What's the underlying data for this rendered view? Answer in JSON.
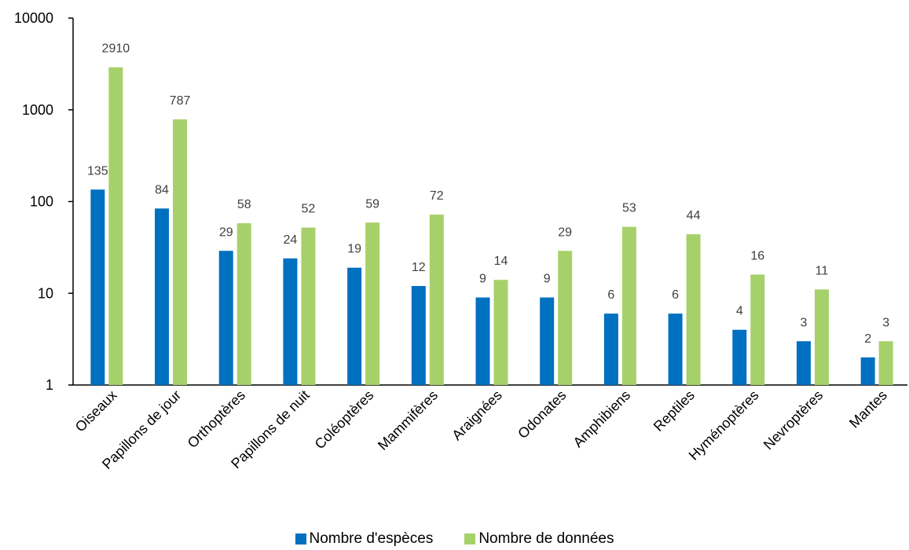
{
  "chart_data": {
    "type": "bar",
    "yscale": "log",
    "ylim": [
      1,
      10000
    ],
    "yticks": [
      "1",
      "10",
      "100",
      "1000",
      "10000"
    ],
    "grid": false,
    "legend_position": "bottom",
    "categories": [
      "Oiseaux",
      "Papillons de jour",
      "Orthoptères",
      "Papillons de nuit",
      "Coléoptères",
      "Mammifères",
      "Araignées",
      "Odonates",
      "Amphibiens",
      "Reptiles",
      "Hyménoptères",
      "Nevroptères",
      "Mantes"
    ],
    "series": [
      {
        "name": "Nombre d'espèces",
        "color": "#0070C0",
        "values": [
          135,
          84,
          29,
          24,
          19,
          12,
          9,
          9,
          6,
          6,
          4,
          3,
          2
        ]
      },
      {
        "name": "Nombre de données",
        "color": "#A6D16A",
        "values": [
          2910,
          787,
          58,
          52,
          59,
          72,
          14,
          29,
          53,
          44,
          16,
          11,
          3
        ]
      }
    ]
  }
}
